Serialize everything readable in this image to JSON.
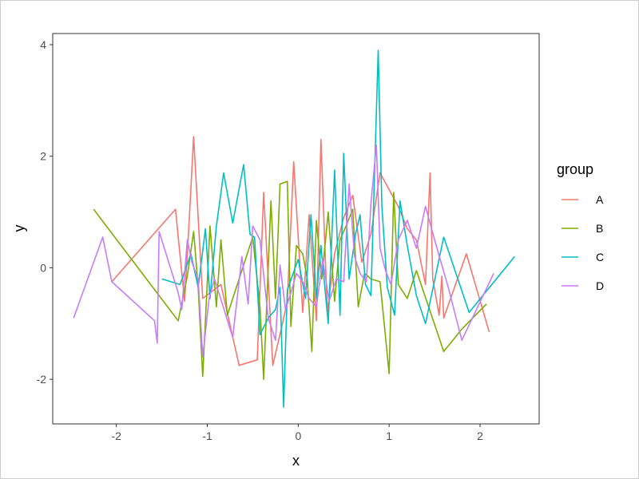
{
  "chart_data": {
    "type": "line",
    "xlabel": "x",
    "ylabel": "y",
    "xlim": [
      -2.7,
      2.65
    ],
    "ylim": [
      -2.8,
      4.2
    ],
    "x_ticks": [
      -2,
      -1,
      0,
      1,
      2
    ],
    "y_ticks": [
      -2,
      0,
      2,
      4
    ],
    "x_tick_labels": [
      "-2",
      "-1",
      "0",
      "1",
      "2"
    ],
    "y_tick_labels": [
      "-2",
      "0",
      "2",
      "4"
    ],
    "grid": false,
    "legend": {
      "title": "group",
      "position": "right"
    },
    "series": [
      {
        "name": "A",
        "color": "#F8766D",
        "x": [
          -2.05,
          -1.35,
          -1.25,
          -1.2,
          -1.15,
          -1.05,
          -0.85,
          -0.65,
          -0.55,
          -0.45,
          -0.38,
          -0.28,
          -0.18,
          -0.12,
          -0.05,
          0.05,
          0.12,
          0.2,
          0.25,
          0.32,
          0.4,
          0.5,
          0.6,
          0.7,
          0.8,
          0.9,
          1.0,
          1.1,
          1.2,
          1.3,
          1.4,
          1.45,
          1.48,
          1.55,
          1.58,
          1.6,
          1.85,
          2.1
        ],
        "y": [
          -0.25,
          1.05,
          -0.6,
          0.8,
          2.35,
          -0.55,
          -0.3,
          -1.75,
          -1.7,
          -1.65,
          1.35,
          -1.75,
          -1.05,
          -0.6,
          1.9,
          -0.8,
          0.95,
          -0.95,
          2.3,
          -0.8,
          0.25,
          0.9,
          1.3,
          0.1,
          0.6,
          1.7,
          1.4,
          1.1,
          0.7,
          0.5,
          -0.3,
          1.7,
          -0.2,
          -0.85,
          -0.15,
          -0.9,
          0.25,
          -1.15
        ]
      },
      {
        "name": "B",
        "color": "#7CAE00",
        "x": [
          -2.25,
          -1.32,
          -1.22,
          -1.15,
          -1.1,
          -1.05,
          -0.97,
          -0.9,
          -0.85,
          -0.78,
          -0.5,
          -0.42,
          -0.38,
          -0.3,
          -0.25,
          -0.2,
          -0.12,
          -0.08,
          -0.02,
          0.05,
          0.1,
          0.15,
          0.2,
          0.26,
          0.33,
          0.4,
          0.46,
          0.54,
          0.6,
          0.66,
          0.73,
          0.8,
          0.9,
          1.0,
          1.05,
          1.1,
          1.2,
          1.3,
          1.6,
          1.8,
          2.07
        ],
        "y": [
          1.05,
          -0.95,
          -0.15,
          0.65,
          -0.35,
          -1.95,
          0.75,
          -0.7,
          0.5,
          -0.85,
          0.55,
          -0.7,
          -2.0,
          1.2,
          -0.55,
          1.5,
          1.55,
          -1.05,
          0.4,
          0.25,
          -0.2,
          -1.5,
          0.85,
          -0.2,
          1.0,
          -0.6,
          0.5,
          0.8,
          1.05,
          -0.7,
          -0.1,
          -0.2,
          -0.25,
          -1.9,
          1.35,
          -0.3,
          -0.55,
          -0.05,
          -1.5,
          -1.1,
          -0.65
        ]
      },
      {
        "name": "C",
        "color": "#00BFC4",
        "x": [
          -1.5,
          -1.3,
          -1.18,
          -1.1,
          -1.02,
          -0.97,
          -0.9,
          -0.82,
          -0.72,
          -0.6,
          -0.53,
          -0.48,
          -0.42,
          -0.33,
          -0.25,
          -0.2,
          -0.16,
          -0.12,
          0.0,
          0.08,
          0.14,
          0.2,
          0.25,
          0.33,
          0.4,
          0.46,
          0.5,
          0.56,
          0.63,
          0.68,
          0.74,
          0.8,
          0.88,
          0.92,
          0.98,
          1.06,
          1.12,
          1.2,
          1.3,
          1.4,
          1.6,
          1.88,
          2.03,
          2.38
        ],
        "y": [
          -0.2,
          -0.3,
          0.25,
          -0.35,
          0.7,
          -0.55,
          0.75,
          1.7,
          0.8,
          1.85,
          0.6,
          0.55,
          -1.2,
          -0.9,
          -0.75,
          -0.35,
          -2.5,
          -0.4,
          0.15,
          -0.55,
          0.95,
          -0.55,
          0.4,
          -1.0,
          1.75,
          -0.85,
          2.05,
          -0.2,
          0.6,
          0.95,
          -0.3,
          -0.5,
          3.9,
          1.1,
          -0.35,
          -0.85,
          1.2,
          0.4,
          -0.5,
          -1.0,
          0.55,
          -0.8,
          -0.5,
          0.2
        ]
      },
      {
        "name": "D",
        "color": "#C77CFF",
        "x": [
          -2.47,
          -2.15,
          -2.05,
          -1.58,
          -1.55,
          -1.53,
          -1.32,
          -1.28,
          -1.22,
          -1.17,
          -1.1,
          -1.05,
          -0.98,
          -0.92,
          -0.72,
          -0.62,
          -0.55,
          -0.5,
          -0.42,
          -0.33,
          -0.25,
          -0.2,
          -0.14,
          -0.08,
          -0.02,
          0.05,
          0.12,
          0.2,
          0.27,
          0.34,
          0.42,
          0.5,
          0.56,
          0.62,
          0.68,
          0.75,
          0.8,
          0.86,
          0.9,
          0.96,
          1.02,
          1.1,
          1.2,
          1.3,
          1.4,
          1.5,
          1.65,
          1.8,
          2.15
        ],
        "y": [
          -0.9,
          0.55,
          -0.25,
          -0.95,
          -1.35,
          0.65,
          -0.45,
          -0.75,
          0.5,
          0.1,
          -0.2,
          -1.6,
          -0.55,
          -0.2,
          -1.25,
          0.2,
          -0.65,
          0.75,
          0.5,
          -0.9,
          -1.3,
          0.05,
          -0.75,
          -0.45,
          -0.1,
          -0.25,
          -0.55,
          -0.7,
          0.15,
          -0.6,
          -0.2,
          -0.25,
          1.5,
          0.2,
          -0.1,
          -0.25,
          1.15,
          2.2,
          0.35,
          -0.05,
          -0.3,
          0.5,
          0.85,
          0.35,
          1.1,
          0.5,
          -0.35,
          -1.3,
          -0.1
        ]
      }
    ]
  }
}
